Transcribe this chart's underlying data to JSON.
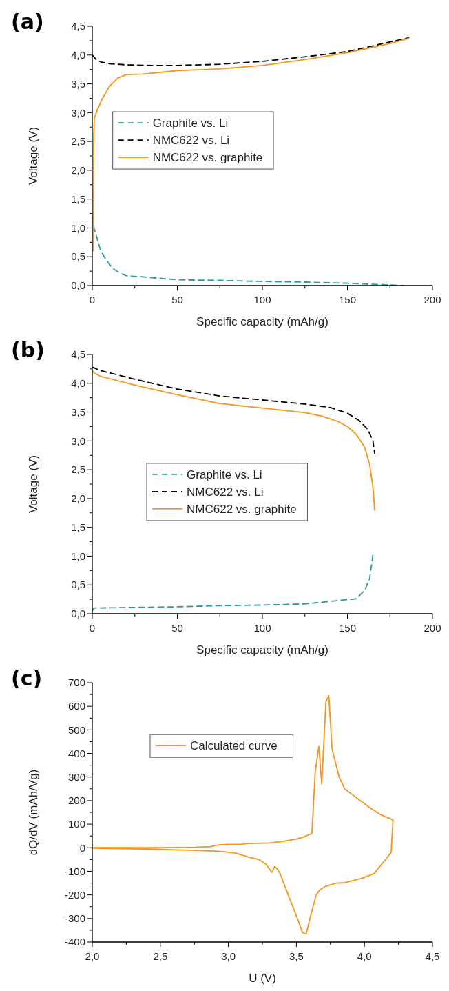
{
  "chart_data": [
    {
      "type": "line",
      "title": "(a)",
      "xlabel": "Specific capacity (mAh/g)",
      "ylabel": "Voltage (V)",
      "xlim": [
        0,
        200
      ],
      "ylim": [
        0,
        4.5
      ],
      "xticks": [
        0,
        {
          "value": 25,
          "label": null
        },
        50,
        {
          "value": 75,
          "label": null
        },
        100,
        {
          "value": 125,
          "label": null
        },
        150,
        {
          "value": 175,
          "label": null
        },
        200
      ],
      "yticks": [
        {
          "value": 0,
          "label": "0,0"
        },
        {
          "value": 0.25,
          "label": null
        },
        {
          "value": 0.5,
          "label": "0,5"
        },
        {
          "value": 0.75,
          "label": null
        },
        {
          "value": 1,
          "label": "1,0"
        },
        {
          "value": 1.25,
          "label": null
        },
        {
          "value": 1.5,
          "label": "1,5"
        },
        {
          "value": 1.75,
          "label": null
        },
        {
          "value": 2,
          "label": "2,0"
        },
        {
          "value": 2.25,
          "label": null
        },
        {
          "value": 2.5,
          "label": "2,5"
        },
        {
          "value": 2.75,
          "label": null
        },
        {
          "value": 3,
          "label": "3,0"
        },
        {
          "value": 3.25,
          "label": null
        },
        {
          "value": 3.5,
          "label": "3,5"
        },
        {
          "value": 3.75,
          "label": null
        },
        {
          "value": 4,
          "label": "4,0"
        },
        {
          "value": 4.25,
          "label": null
        },
        {
          "value": 4.5,
          "label": "4,5"
        }
      ],
      "legend": "center left",
      "grid": false,
      "series": [
        {
          "name": "Graphite vs. Li",
          "color": "#2b9c9c",
          "line_style": "dashed",
          "x": [
            0,
            1,
            3,
            5,
            8,
            12,
            16,
            20,
            30,
            50,
            75,
            100,
            125,
            150,
            175,
            183
          ],
          "values": [
            1.2,
            1.0,
            0.8,
            0.6,
            0.45,
            0.3,
            0.22,
            0.17,
            0.15,
            0.1,
            0.09,
            0.07,
            0.06,
            0.04,
            0.01,
            0.0
          ]
        },
        {
          "name": "NMC622 vs. Li",
          "color": "#000000",
          "line_style": "dashed",
          "x": [
            0,
            2,
            5,
            10,
            20,
            35,
            50,
            75,
            100,
            125,
            150,
            186
          ],
          "values": [
            4.0,
            3.93,
            3.88,
            3.85,
            3.83,
            3.82,
            3.82,
            3.84,
            3.89,
            3.97,
            4.06,
            4.3
          ]
        },
        {
          "name": "NMC622 vs. graphite",
          "color": "#f7941d",
          "line_style": "solid",
          "x": [
            0.5,
            0.6,
            0.8,
            1.2,
            3,
            6,
            10,
            15,
            20,
            30,
            50,
            75,
            100,
            125,
            150,
            175,
            186
          ],
          "values": [
            0.6,
            1.5,
            2.6,
            2.9,
            3.05,
            3.25,
            3.45,
            3.6,
            3.66,
            3.67,
            3.73,
            3.76,
            3.82,
            3.92,
            4.04,
            4.2,
            4.29
          ]
        }
      ]
    },
    {
      "type": "line",
      "title": "(b)",
      "xlabel": "Specific capacity (mAh/g)",
      "ylabel": "Voltage (V)",
      "xlim": [
        0,
        200
      ],
      "ylim": [
        0,
        4.5
      ],
      "xticks": [
        0,
        {
          "value": 25,
          "label": null
        },
        50,
        {
          "value": 75,
          "label": null
        },
        100,
        {
          "value": 125,
          "label": null
        },
        150,
        {
          "value": 175,
          "label": null
        },
        200
      ],
      "yticks": [
        {
          "value": 0,
          "label": "0,0"
        },
        {
          "value": 0.25,
          "label": null
        },
        {
          "value": 0.5,
          "label": "0,5"
        },
        {
          "value": 0.75,
          "label": null
        },
        {
          "value": 1,
          "label": "1,0"
        },
        {
          "value": 1.25,
          "label": null
        },
        {
          "value": 1.5,
          "label": "1,5"
        },
        {
          "value": 1.75,
          "label": null
        },
        {
          "value": 2,
          "label": "2,0"
        },
        {
          "value": 2.25,
          "label": null
        },
        {
          "value": 2.5,
          "label": "2,5"
        },
        {
          "value": 2.75,
          "label": null
        },
        {
          "value": 3,
          "label": "3,0"
        },
        {
          "value": 3.25,
          "label": null
        },
        {
          "value": 3.5,
          "label": "3,5"
        },
        {
          "value": 3.75,
          "label": null
        },
        {
          "value": 4,
          "label": "4,0"
        },
        {
          "value": 4.25,
          "label": null
        },
        {
          "value": 4.5,
          "label": "4,5"
        }
      ],
      "legend": "center",
      "grid": false,
      "series": [
        {
          "name": "Graphite vs. Li",
          "color": "#2b9c9c",
          "line_style": "dashed",
          "x": [
            0,
            1,
            5,
            25,
            50,
            75,
            100,
            125,
            135,
            145,
            155,
            160,
            163,
            165
          ],
          "values": [
            0.05,
            0.1,
            0.1,
            0.11,
            0.12,
            0.14,
            0.15,
            0.17,
            0.2,
            0.23,
            0.26,
            0.4,
            0.6,
            1.02
          ]
        },
        {
          "name": "NMC622 vs. Li",
          "color": "#000000",
          "line_style": "dashed",
          "x": [
            0,
            5,
            25,
            50,
            75,
            100,
            125,
            140,
            150,
            157,
            162,
            165,
            166
          ],
          "values": [
            4.28,
            4.22,
            4.07,
            3.9,
            3.78,
            3.71,
            3.64,
            3.58,
            3.48,
            3.35,
            3.2,
            3.0,
            2.78
          ]
        },
        {
          "name": "NMC622 vs. graphite",
          "color": "#f7941d",
          "line_style": "solid",
          "x": [
            0,
            1,
            5,
            25,
            50,
            75,
            100,
            125,
            135,
            145,
            150,
            155,
            160,
            163,
            165,
            166
          ],
          "values": [
            4.22,
            4.18,
            4.12,
            3.97,
            3.8,
            3.65,
            3.57,
            3.49,
            3.43,
            3.33,
            3.25,
            3.12,
            2.9,
            2.6,
            2.2,
            1.8
          ]
        }
      ]
    },
    {
      "type": "line",
      "title": "(c)",
      "xlabel": "U (V)",
      "ylabel": "dQ/dV (mAh/Vg)",
      "xlim": [
        2,
        4.5
      ],
      "ylim": [
        -400,
        700
      ],
      "xticks": [
        {
          "value": 2,
          "label": "2,0"
        },
        {
          "value": 2.25,
          "label": null
        },
        {
          "value": 2.5,
          "label": "2,5"
        },
        {
          "value": 2.75,
          "label": null
        },
        {
          "value": 3,
          "label": "3,0"
        },
        {
          "value": 3.25,
          "label": null
        },
        {
          "value": 3.5,
          "label": "3,5"
        },
        {
          "value": 3.75,
          "label": null
        },
        {
          "value": 4,
          "label": "4,0"
        },
        {
          "value": 4.25,
          "label": null
        },
        {
          "value": 4.5,
          "label": "4,5"
        }
      ],
      "yticks": [
        -400,
        {
          "value": -350,
          "label": null
        },
        -300,
        {
          "value": -250,
          "label": null
        },
        -200,
        {
          "value": -150,
          "label": null
        },
        -100,
        {
          "value": -50,
          "label": null
        },
        0,
        {
          "value": 50,
          "label": null
        },
        100,
        {
          "value": 150,
          "label": null
        },
        200,
        {
          "value": 250,
          "label": null
        },
        300,
        {
          "value": 350,
          "label": null
        },
        400,
        {
          "value": 450,
          "label": null
        },
        500,
        {
          "value": 550,
          "label": null
        },
        600,
        {
          "value": 650,
          "label": null
        },
        700
      ],
      "legend": "top left",
      "grid": false,
      "series": [
        {
          "name": "Calculated curve",
          "color": "#f7941d",
          "line_style": "solid",
          "x": [
            2.0,
            2.5,
            2.75,
            2.87,
            2.93,
            3.0,
            3.1,
            3.15,
            3.3,
            3.4,
            3.5,
            3.55,
            3.6,
            3.614,
            3.638,
            3.665,
            3.686,
            3.717,
            3.738,
            3.762,
            3.814,
            3.855,
            3.9,
            4.04,
            4.12,
            4.21,
            4.196,
            4.155,
            4.07,
            3.98,
            3.855,
            3.79,
            3.71,
            3.67,
            3.645,
            3.6,
            3.572,
            3.545,
            3.494,
            3.44,
            3.38,
            3.36,
            3.34,
            3.32,
            3.277,
            3.225,
            3.15,
            3.05,
            2.93,
            2.68,
            2.37,
            2.0
          ],
          "values": [
            0,
            0,
            2,
            5,
            12,
            14,
            15,
            18,
            20,
            27,
            37,
            45,
            57,
            60,
            320,
            430,
            270,
            620,
            645,
            420,
            300,
            250,
            230,
            170,
            140,
            118,
            -20,
            -50,
            -110,
            -130,
            -148,
            -150,
            -165,
            -180,
            -200,
            -300,
            -365,
            -360,
            -280,
            -200,
            -110,
            -90,
            -80,
            -105,
            -70,
            -50,
            -40,
            -22,
            -15,
            -10,
            -5,
            -2
          ]
        }
      ]
    }
  ]
}
